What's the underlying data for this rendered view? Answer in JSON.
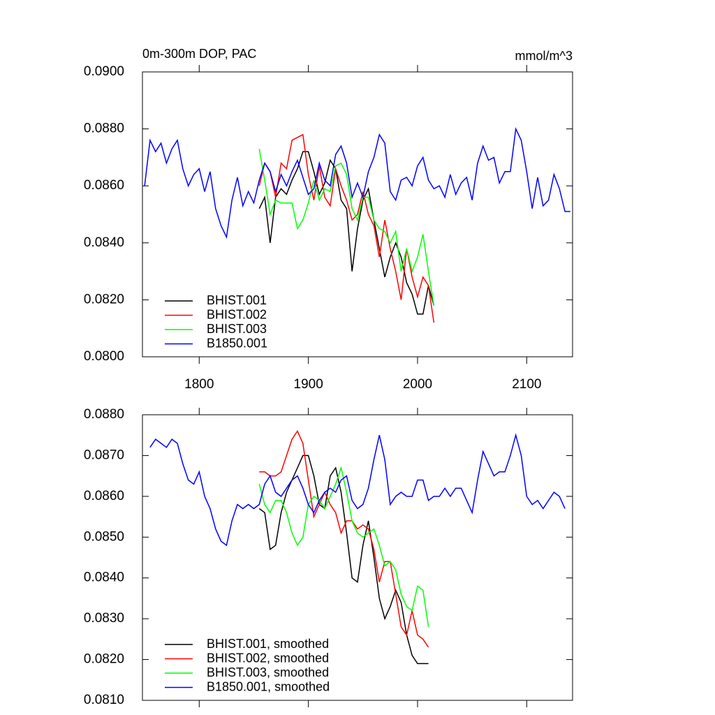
{
  "chart_data": [
    {
      "type": "line",
      "title": "0m-300m DOP, PAC",
      "units": "mmol/m^3",
      "xlim": [
        1748,
        2142
      ],
      "xticks": [
        1800,
        1900,
        2000,
        2100
      ],
      "show_xtick_labels": true,
      "ylim": [
        0.08,
        0.09
      ],
      "yticks": [
        {
          "value": 0.08,
          "label": "0.0800"
        },
        {
          "value": 0.082,
          "label": "0.0820"
        },
        {
          "value": 0.084,
          "label": "0.0840"
        },
        {
          "value": 0.086,
          "label": "0.0860"
        },
        {
          "value": 0.088,
          "label": "0.0880"
        },
        {
          "value": 0.09,
          "label": "0.0900"
        }
      ],
      "legend": "lower left",
      "series": [
        {
          "name": "BHIST.001",
          "color": "#000000",
          "x": [
            1855,
            1860,
            1865,
            1870,
            1875,
            1880,
            1885,
            1890,
            1895,
            1900,
            1905,
            1910,
            1915,
            1920,
            1925,
            1930,
            1935,
            1940,
            1945,
            1950,
            1955,
            1960,
            1965,
            1970,
            1975,
            1980,
            1985,
            1990,
            1995,
            2000,
            2005,
            2010,
            2015
          ],
          "values": [
            0.0852,
            0.0856,
            0.084,
            0.0856,
            0.0859,
            0.0857,
            0.0862,
            0.0866,
            0.0872,
            0.0872,
            0.0865,
            0.0857,
            0.0861,
            0.0869,
            0.0866,
            0.0855,
            0.0852,
            0.083,
            0.0845,
            0.0855,
            0.0859,
            0.0848,
            0.0838,
            0.0828,
            0.0835,
            0.084,
            0.0835,
            0.0826,
            0.0822,
            0.0815,
            0.0815,
            0.0825,
            0.0818
          ]
        },
        {
          "name": "BHIST.002",
          "color": "#ff0000",
          "x": [
            1855,
            1860,
            1865,
            1870,
            1875,
            1880,
            1885,
            1890,
            1895,
            1900,
            1905,
            1910,
            1915,
            1920,
            1925,
            1930,
            1935,
            1940,
            1945,
            1950,
            1955,
            1960,
            1965,
            1970,
            1975,
            1980,
            1985,
            1990,
            1995,
            2000,
            2005,
            2010,
            2015
          ],
          "values": [
            0.086,
            0.0868,
            0.0865,
            0.0856,
            0.0868,
            0.0866,
            0.0876,
            0.0877,
            0.0878,
            0.0864,
            0.0855,
            0.0867,
            0.0856,
            0.0853,
            0.0866,
            0.086,
            0.0855,
            0.0848,
            0.085,
            0.0858,
            0.085,
            0.0846,
            0.0835,
            0.0848,
            0.0838,
            0.083,
            0.082,
            0.0838,
            0.0828,
            0.0821,
            0.0828,
            0.0825,
            0.0812
          ]
        },
        {
          "name": "BHIST.003",
          "color": "#00ff00",
          "x": [
            1855,
            1860,
            1865,
            1870,
            1875,
            1880,
            1885,
            1890,
            1895,
            1900,
            1905,
            1910,
            1915,
            1920,
            1925,
            1930,
            1935,
            1940,
            1945,
            1950,
            1955,
            1960,
            1965,
            1970,
            1975,
            1980,
            1985,
            1990,
            1995,
            2000,
            2005,
            2010,
            2015
          ],
          "values": [
            0.0873,
            0.0862,
            0.085,
            0.0855,
            0.0854,
            0.0854,
            0.0854,
            0.0845,
            0.0848,
            0.0854,
            0.0862,
            0.0855,
            0.0859,
            0.0858,
            0.0867,
            0.0868,
            0.0864,
            0.0852,
            0.0848,
            0.0856,
            0.0856,
            0.0848,
            0.0845,
            0.0844,
            0.084,
            0.0844,
            0.083,
            0.0838,
            0.083,
            0.0835,
            0.0843,
            0.083,
            0.0818
          ]
        },
        {
          "name": "B1850.001",
          "color": "#0000ff",
          "x": [
            1750,
            1755,
            1760,
            1765,
            1770,
            1775,
            1780,
            1785,
            1790,
            1795,
            1800,
            1805,
            1810,
            1815,
            1820,
            1825,
            1830,
            1835,
            1840,
            1845,
            1850,
            1855,
            1860,
            1865,
            1870,
            1875,
            1880,
            1885,
            1890,
            1895,
            1900,
            1905,
            1910,
            1915,
            1920,
            1925,
            1930,
            1935,
            1940,
            1945,
            1950,
            1955,
            1960,
            1965,
            1970,
            1975,
            1980,
            1985,
            1990,
            1995,
            2000,
            2005,
            2010,
            2015,
            2020,
            2025,
            2030,
            2035,
            2040,
            2045,
            2050,
            2055,
            2060,
            2065,
            2070,
            2075,
            2080,
            2085,
            2090,
            2095,
            2100,
            2105,
            2110,
            2115,
            2120,
            2125,
            2130,
            2135,
            2140
          ],
          "values": [
            0.086,
            0.0876,
            0.0872,
            0.0875,
            0.0868,
            0.0873,
            0.0876,
            0.0866,
            0.086,
            0.0864,
            0.0866,
            0.0858,
            0.0865,
            0.0852,
            0.0846,
            0.0842,
            0.0855,
            0.0863,
            0.0853,
            0.0858,
            0.0854,
            0.0862,
            0.0868,
            0.0865,
            0.0858,
            0.0864,
            0.086,
            0.0865,
            0.0869,
            0.0863,
            0.0857,
            0.0859,
            0.0868,
            0.0862,
            0.086,
            0.0871,
            0.0874,
            0.0868,
            0.0856,
            0.0861,
            0.0856,
            0.0865,
            0.087,
            0.0878,
            0.0875,
            0.0858,
            0.0855,
            0.0862,
            0.0863,
            0.086,
            0.0867,
            0.087,
            0.0862,
            0.0859,
            0.086,
            0.0856,
            0.0864,
            0.0857,
            0.0861,
            0.0863,
            0.0855,
            0.0868,
            0.0874,
            0.0869,
            0.087,
            0.0861,
            0.0865,
            0.0865,
            0.088,
            0.0876,
            0.0865,
            0.0852,
            0.0863,
            0.0853,
            0.0855,
            0.0864,
            0.0859,
            0.0851,
            0.0851
          ]
        }
      ]
    },
    {
      "type": "line",
      "xlim": [
        1748,
        2142
      ],
      "xticks": [
        1800,
        1900,
        2000,
        2100
      ],
      "show_xtick_labels": false,
      "ylim": [
        0.081,
        0.088
      ],
      "yticks": [
        {
          "value": 0.081,
          "label": "0.0810"
        },
        {
          "value": 0.082,
          "label": "0.0820"
        },
        {
          "value": 0.083,
          "label": "0.0830"
        },
        {
          "value": 0.084,
          "label": "0.0840"
        },
        {
          "value": 0.085,
          "label": "0.0850"
        },
        {
          "value": 0.086,
          "label": "0.0860"
        },
        {
          "value": 0.087,
          "label": "0.0870"
        },
        {
          "value": 0.088,
          "label": "0.0880"
        }
      ],
      "legend": "lower left",
      "series": [
        {
          "name": "BHIST.001, smoothed",
          "color": "#000000",
          "x": [
            1855,
            1860,
            1865,
            1870,
            1875,
            1880,
            1885,
            1890,
            1895,
            1900,
            1905,
            1910,
            1915,
            1920,
            1925,
            1930,
            1935,
            1940,
            1945,
            1950,
            1955,
            1960,
            1965,
            1970,
            1975,
            1980,
            1985,
            1990,
            1995,
            2000,
            2005,
            2010
          ],
          "values": [
            0.0857,
            0.0856,
            0.0847,
            0.0848,
            0.0856,
            0.0861,
            0.0864,
            0.0867,
            0.087,
            0.087,
            0.0865,
            0.0858,
            0.0857,
            0.0865,
            0.0867,
            0.0861,
            0.0851,
            0.084,
            0.0839,
            0.0848,
            0.0854,
            0.0845,
            0.0835,
            0.083,
            0.0833,
            0.0837,
            0.0834,
            0.0826,
            0.0821,
            0.0819,
            0.0819,
            0.0819
          ]
        },
        {
          "name": "BHIST.002, smoothed",
          "color": "#ff0000",
          "x": [
            1855,
            1860,
            1865,
            1870,
            1875,
            1880,
            1885,
            1890,
            1895,
            1900,
            1905,
            1910,
            1915,
            1920,
            1925,
            1930,
            1935,
            1940,
            1945,
            1950,
            1955,
            1960,
            1965,
            1970,
            1975,
            1980,
            1985,
            1990,
            1995,
            2000,
            2005,
            2010
          ],
          "values": [
            0.0866,
            0.0866,
            0.0865,
            0.0865,
            0.0866,
            0.087,
            0.0874,
            0.0876,
            0.0873,
            0.0864,
            0.0855,
            0.0858,
            0.0861,
            0.0858,
            0.0856,
            0.0851,
            0.0854,
            0.0854,
            0.0852,
            0.0853,
            0.0852,
            0.0847,
            0.0839,
            0.0844,
            0.0844,
            0.0836,
            0.0828,
            0.0826,
            0.0832,
            0.0826,
            0.0825,
            0.0823
          ]
        },
        {
          "name": "BHIST.003, smoothed",
          "color": "#00ff00",
          "x": [
            1855,
            1860,
            1865,
            1870,
            1875,
            1880,
            1885,
            1890,
            1895,
            1900,
            1905,
            1910,
            1915,
            1920,
            1925,
            1930,
            1935,
            1940,
            1945,
            1950,
            1955,
            1960,
            1965,
            1970,
            1975,
            1980,
            1985,
            1990,
            1995,
            2000,
            2005,
            2010
          ],
          "values": [
            0.0863,
            0.0858,
            0.0856,
            0.0859,
            0.0859,
            0.0856,
            0.0851,
            0.0848,
            0.085,
            0.0858,
            0.086,
            0.0859,
            0.0857,
            0.086,
            0.0863,
            0.0867,
            0.0861,
            0.0854,
            0.0851,
            0.085,
            0.0851,
            0.0852,
            0.0848,
            0.0843,
            0.0844,
            0.0842,
            0.0836,
            0.0833,
            0.0832,
            0.0838,
            0.0837,
            0.0828
          ]
        },
        {
          "name": "B1850.001, smoothed",
          "color": "#0000ff",
          "x": [
            1755,
            1760,
            1765,
            1770,
            1775,
            1780,
            1785,
            1790,
            1795,
            1800,
            1805,
            1810,
            1815,
            1820,
            1825,
            1830,
            1835,
            1840,
            1845,
            1850,
            1855,
            1860,
            1865,
            1870,
            1875,
            1880,
            1885,
            1890,
            1895,
            1900,
            1905,
            1910,
            1915,
            1920,
            1925,
            1930,
            1935,
            1940,
            1945,
            1950,
            1955,
            1960,
            1965,
            1970,
            1975,
            1980,
            1985,
            1990,
            1995,
            2000,
            2005,
            2010,
            2015,
            2020,
            2025,
            2030,
            2035,
            2040,
            2045,
            2050,
            2055,
            2060,
            2065,
            2070,
            2075,
            2080,
            2085,
            2090,
            2095,
            2100,
            2105,
            2110,
            2115,
            2120,
            2125,
            2130,
            2135
          ],
          "values": [
            0.0872,
            0.0874,
            0.0873,
            0.0872,
            0.0874,
            0.0873,
            0.0868,
            0.0864,
            0.0863,
            0.0866,
            0.086,
            0.0857,
            0.0852,
            0.0849,
            0.0848,
            0.0854,
            0.0858,
            0.0857,
            0.0858,
            0.0857,
            0.0858,
            0.0863,
            0.0865,
            0.0861,
            0.086,
            0.0862,
            0.0864,
            0.0865,
            0.0862,
            0.0858,
            0.0856,
            0.0859,
            0.0861,
            0.0862,
            0.0861,
            0.0864,
            0.0865,
            0.0859,
            0.0857,
            0.0858,
            0.0862,
            0.0869,
            0.0875,
            0.0869,
            0.0858,
            0.086,
            0.0861,
            0.086,
            0.086,
            0.0864,
            0.0864,
            0.0859,
            0.086,
            0.086,
            0.0862,
            0.086,
            0.0862,
            0.0862,
            0.0859,
            0.0856,
            0.0864,
            0.0871,
            0.0868,
            0.0865,
            0.0866,
            0.0866,
            0.087,
            0.0875,
            0.087,
            0.086,
            0.0858,
            0.0859,
            0.0857,
            0.0859,
            0.0861,
            0.086,
            0.0857
          ]
        }
      ]
    }
  ]
}
